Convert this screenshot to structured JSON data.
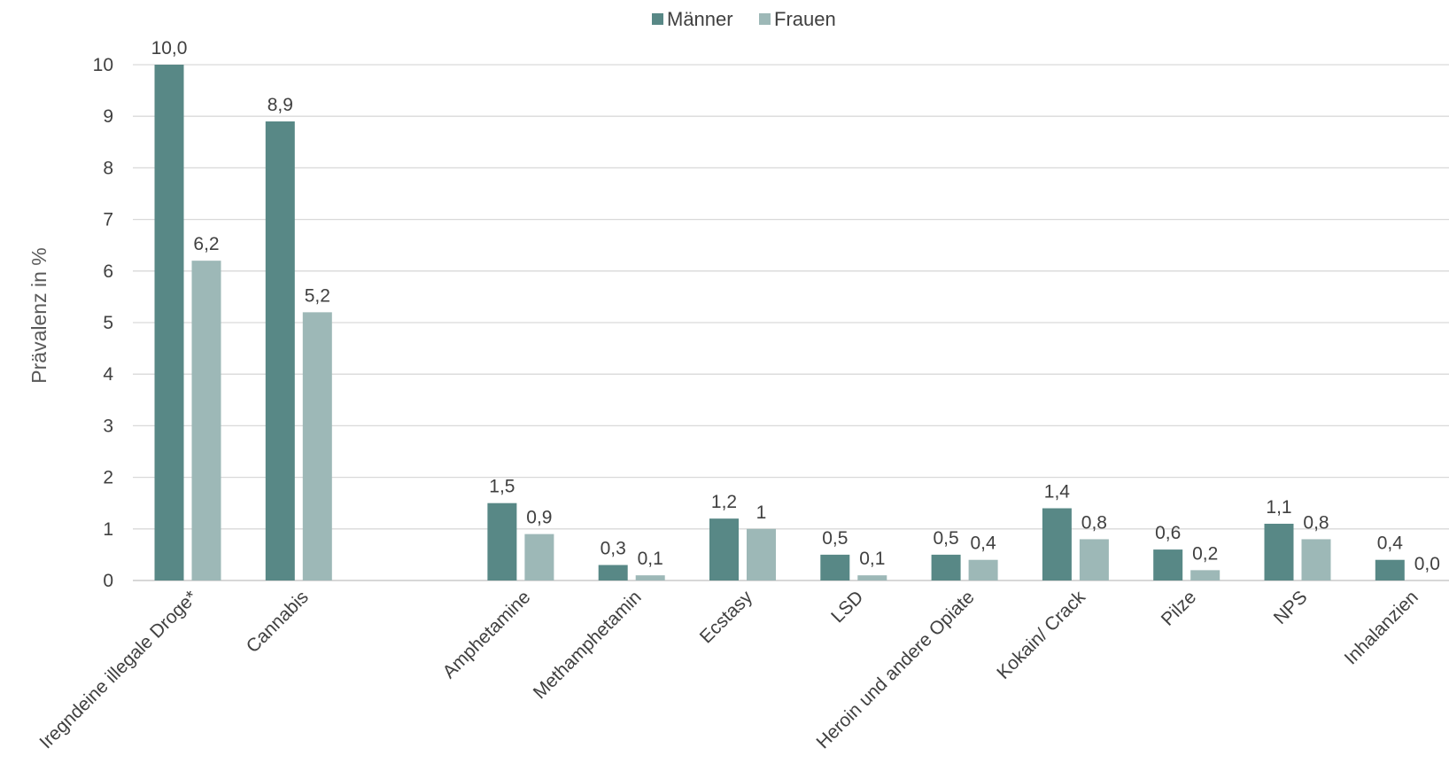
{
  "chart_data": {
    "type": "bar",
    "ylabel": "Prävalenz in %",
    "ylim": [
      0,
      10
    ],
    "yticks": [
      "0",
      "1",
      "2",
      "3",
      "4",
      "5",
      "6",
      "7",
      "8",
      "9",
      "10"
    ],
    "grid": true,
    "legend_position": "top-center",
    "categories": [
      "Iregndeine illegale Droge*",
      "Cannabis",
      "",
      "Amphetamine",
      "Methamphetamin",
      "Ecstasy",
      "LSD",
      "Heroin und andere Opiate",
      "Kokain/ Crack",
      "Pilze",
      "NPS",
      "Inhalanzien"
    ],
    "series": [
      {
        "name": "Männer",
        "color": "#588886",
        "values": [
          10.0,
          8.9,
          null,
          1.5,
          0.3,
          1.2,
          0.5,
          0.5,
          1.4,
          0.6,
          1.1,
          0.4
        ],
        "labels": [
          "10,0",
          "8,9",
          "",
          "1,5",
          "0,3",
          "1,2",
          "0,5",
          "0,5",
          "1,4",
          "0,6",
          "1,1",
          "0,4"
        ]
      },
      {
        "name": "Frauen",
        "color": "#9db8b7",
        "values": [
          6.2,
          5.2,
          null,
          0.9,
          0.1,
          1.0,
          0.1,
          0.4,
          0.8,
          0.2,
          0.8,
          0.0
        ],
        "labels": [
          "6,2",
          "5,2",
          "",
          "0,9",
          "0,1",
          "1",
          "0,1",
          "0,4",
          "0,8",
          "0,2",
          "0,8",
          "0,0"
        ]
      }
    ]
  }
}
